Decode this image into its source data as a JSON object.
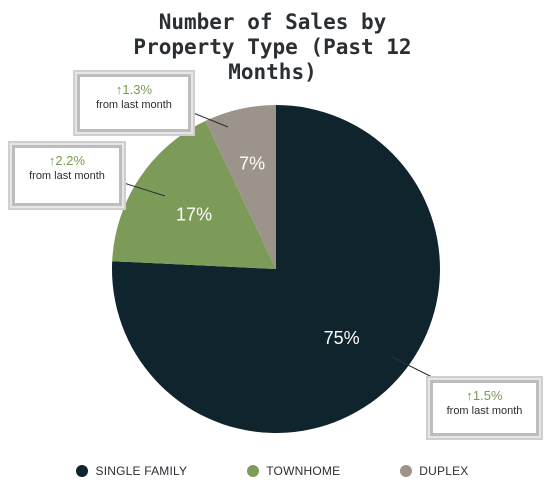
{
  "title_lines": [
    "Number of Sales by",
    "Property Type (Past 12",
    "Months)"
  ],
  "colors": {
    "single_family": "#0f242c",
    "townhome": "#7d9b58",
    "duplex": "#9c938a",
    "callout_up": "#7a9a52"
  },
  "chart_data": {
    "type": "pie",
    "title": "Number of Sales by Property Type (Past 12 Months)",
    "series": [
      {
        "name": "SINGLE FAMILY",
        "value": 75,
        "label": "75%",
        "color": "#0f242c",
        "label_color": "#ffffff"
      },
      {
        "name": "TOWNHOME",
        "value": 17,
        "label": "17%",
        "color": "#7d9b58",
        "label_color": "#ffffff"
      },
      {
        "name": "DUPLEX",
        "value": 7,
        "label": "7%",
        "color": "#9c938a",
        "label_color": "#ffffff"
      }
    ],
    "legend_position": "bottom",
    "annotations": [
      {
        "series": "SINGLE FAMILY",
        "change": "↑1.5%",
        "note": "from last month"
      },
      {
        "series": "TOWNHOME",
        "change": "↑2.2%",
        "note": "from last month"
      },
      {
        "series": "DUPLEX",
        "change": "↑1.3%",
        "note": "from last month"
      }
    ]
  },
  "legend": [
    {
      "label": "SINGLE FAMILY",
      "color": "#0f242c"
    },
    {
      "label": "TOWNHOME",
      "color": "#7d9b58"
    },
    {
      "label": "DUPLEX",
      "color": "#9c938a"
    }
  ]
}
